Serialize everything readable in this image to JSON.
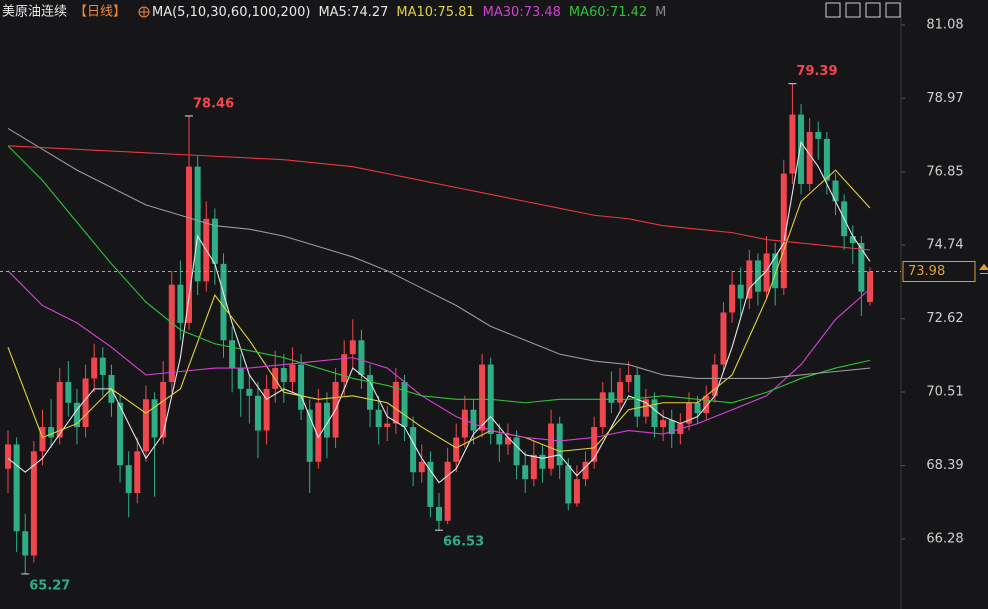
{
  "header": {
    "title": "美原油连续",
    "period": "【日线】",
    "ma_params": "MA(5,10,30,60,100,200)",
    "tail": "M"
  },
  "chart_data": {
    "type": "candlestick",
    "open": [
      68.3,
      69.0,
      66.5,
      65.8,
      68.8,
      69.5,
      69.2,
      70.8,
      70.2,
      69.5,
      70.9,
      71.5,
      71.0,
      70.2,
      68.4,
      67.6,
      68.8,
      70.3,
      69.2,
      70.8,
      73.6,
      72.5,
      77.0,
      73.7,
      75.5,
      74.2,
      72.0,
      71.2,
      70.6,
      70.4,
      69.4,
      70.6,
      71.2,
      70.8,
      71.3,
      70.0,
      68.5,
      70.2,
      69.2,
      70.8,
      71.6,
      72.0,
      71.0,
      70.0,
      69.5,
      69.6,
      70.8,
      69.5,
      68.2,
      68.5,
      67.2,
      66.8,
      68.5,
      69.2,
      70.0,
      69.4,
      71.3,
      69.3,
      69.0,
      69.2,
      68.4,
      68.0,
      68.7,
      68.3,
      69.6,
      68.4,
      67.3,
      68.0,
      68.5,
      69.5,
      70.5,
      70.2,
      70.8,
      71.0,
      69.8,
      70.3,
      69.5,
      69.7,
      69.3,
      69.6,
      70.2,
      69.9,
      70.4,
      71.3,
      72.8,
      73.6,
      73.2,
      74.3,
      73.4,
      74.5,
      73.5,
      76.8,
      78.5,
      76.5,
      78.0,
      77.8,
      76.6,
      76.0,
      75.0,
      74.8,
      73.1
    ],
    "high": [
      69.4,
      69.2,
      67.0,
      69.1,
      70.0,
      70.3,
      71.2,
      71.4,
      70.6,
      71.3,
      71.9,
      71.8,
      71.3,
      70.4,
      68.8,
      69.2,
      70.7,
      70.5,
      71.4,
      74.0,
      74.3,
      78.46,
      77.3,
      76.0,
      75.8,
      74.5,
      72.4,
      71.6,
      71.0,
      70.8,
      71.0,
      71.7,
      71.6,
      71.8,
      71.6,
      70.3,
      70.6,
      70.5,
      71.2,
      72.0,
      72.6,
      72.3,
      71.3,
      70.4,
      70.1,
      71.2,
      71.0,
      69.8,
      69.0,
      68.8,
      67.6,
      68.9,
      69.6,
      70.4,
      70.3,
      71.6,
      71.5,
      69.6,
      69.6,
      69.4,
      68.8,
      69.1,
      69.0,
      70.0,
      69.8,
      68.6,
      68.4,
      68.8,
      69.8,
      70.8,
      71.1,
      71.2,
      71.4,
      71.2,
      70.6,
      70.5,
      70.0,
      70.0,
      69.9,
      70.5,
      70.4,
      70.7,
      71.6,
      73.1,
      74.0,
      74.1,
      74.6,
      74.5,
      75.0,
      74.8,
      77.2,
      79.39,
      78.8,
      78.4,
      78.3,
      78.0,
      76.8,
      76.2,
      75.3,
      75.0,
      74.1
    ],
    "low": [
      67.6,
      65.9,
      65.27,
      65.6,
      68.4,
      68.9,
      69.0,
      69.8,
      69.0,
      69.2,
      70.5,
      70.4,
      69.8,
      67.9,
      66.9,
      67.3,
      68.5,
      67.5,
      69.0,
      70.5,
      72.0,
      72.3,
      73.3,
      73.4,
      73.6,
      71.5,
      70.5,
      69.8,
      69.6,
      68.6,
      69.0,
      70.2,
      70.2,
      70.5,
      69.7,
      67.6,
      68.3,
      68.6,
      68.9,
      70.4,
      71.2,
      70.6,
      69.5,
      69.0,
      69.1,
      69.3,
      69.1,
      67.8,
      67.9,
      66.9,
      66.53,
      66.7,
      68.2,
      68.9,
      69.0,
      69.2,
      69.0,
      68.5,
      68.7,
      68.0,
      67.6,
      67.8,
      67.9,
      68.1,
      68.0,
      67.1,
      67.2,
      67.8,
      68.3,
      69.3,
      69.9,
      70.0,
      70.5,
      69.5,
      69.6,
      69.2,
      69.1,
      68.9,
      69.0,
      69.4,
      69.6,
      69.7,
      70.2,
      71.1,
      72.5,
      72.7,
      72.9,
      73.0,
      73.2,
      73.0,
      73.3,
      76.5,
      76.2,
      76.3,
      77.2,
      76.2,
      75.6,
      74.6,
      74.2,
      72.7,
      73.0
    ],
    "close": [
      69.0,
      66.5,
      65.8,
      68.8,
      69.5,
      69.2,
      70.8,
      70.2,
      69.5,
      70.9,
      71.5,
      71.0,
      70.2,
      68.4,
      67.6,
      68.8,
      70.3,
      69.2,
      70.8,
      73.6,
      72.5,
      77.0,
      73.7,
      75.5,
      74.2,
      72.0,
      71.2,
      70.6,
      70.4,
      69.4,
      70.6,
      71.2,
      70.8,
      71.3,
      70.0,
      68.5,
      70.2,
      69.2,
      70.8,
      71.6,
      72.0,
      71.0,
      70.0,
      69.5,
      69.6,
      70.8,
      69.5,
      68.2,
      68.5,
      67.2,
      66.8,
      68.5,
      69.2,
      70.0,
      69.4,
      71.3,
      69.3,
      69.0,
      69.2,
      68.4,
      68.0,
      68.7,
      68.3,
      69.6,
      68.4,
      67.3,
      68.0,
      68.5,
      69.5,
      70.5,
      70.2,
      70.8,
      71.0,
      69.8,
      70.3,
      69.5,
      69.7,
      69.3,
      69.6,
      70.2,
      69.9,
      70.4,
      71.3,
      72.8,
      73.6,
      73.2,
      74.3,
      73.4,
      74.5,
      73.5,
      76.8,
      78.5,
      76.5,
      78.0,
      77.8,
      76.6,
      76.0,
      75.0,
      74.8,
      73.4,
      73.98
    ],
    "up_color": "#f0474e",
    "down_color": "#2fae86",
    "series": [
      {
        "label": "MA5:74.27",
        "color": "#e6e6e6",
        "x": [
          0,
          2,
          4,
          6,
          8,
          10,
          12,
          14,
          16,
          18,
          20,
          22,
          24,
          26,
          28,
          30,
          32,
          34,
          36,
          38,
          40,
          42,
          44,
          46,
          48,
          50,
          52,
          54,
          56,
          58,
          60,
          62,
          64,
          66,
          68,
          70,
          72,
          74,
          76,
          78,
          80,
          82,
          84,
          86,
          88,
          90,
          92,
          94,
          96,
          98,
          100
        ],
        "values": [
          68.6,
          68.2,
          68.6,
          69.3,
          70.0,
          70.6,
          70.6,
          69.6,
          68.6,
          69.3,
          71.5,
          75.0,
          74.2,
          72.5,
          71.0,
          70.3,
          70.6,
          70.4,
          69.2,
          70.0,
          71.2,
          70.8,
          69.8,
          69.5,
          68.6,
          67.9,
          68.3,
          69.3,
          69.8,
          69.2,
          68.7,
          68.6,
          68.7,
          68.1,
          68.6,
          69.5,
          70.4,
          70.2,
          69.8,
          69.6,
          69.8,
          70.4,
          71.8,
          73.5,
          74.0,
          74.8,
          77.7,
          77.0,
          76.0,
          75.0,
          74.27
        ]
      },
      {
        "label": "MA10:75.81",
        "color": "#e0d23a",
        "x": [
          0,
          4,
          8,
          12,
          16,
          20,
          24,
          28,
          32,
          36,
          40,
          44,
          48,
          52,
          56,
          60,
          64,
          68,
          72,
          76,
          80,
          84,
          88,
          92,
          96,
          100
        ],
        "values": [
          71.8,
          69.2,
          69.6,
          70.6,
          69.9,
          70.6,
          73.3,
          72.0,
          70.5,
          70.3,
          70.4,
          70.2,
          69.5,
          68.9,
          69.4,
          69.2,
          68.8,
          68.9,
          70.0,
          70.2,
          70.2,
          71.0,
          73.2,
          76.0,
          76.9,
          75.81
        ]
      },
      {
        "label": "MA30:73.48",
        "color": "#d63fd6",
        "x": [
          0,
          4,
          8,
          12,
          16,
          20,
          24,
          28,
          32,
          36,
          40,
          44,
          48,
          52,
          56,
          60,
          64,
          68,
          72,
          76,
          80,
          84,
          88,
          92,
          96,
          100
        ],
        "values": [
          74.0,
          73.0,
          72.5,
          71.8,
          71.0,
          71.1,
          71.2,
          71.2,
          71.3,
          71.4,
          71.5,
          71.2,
          70.4,
          69.8,
          69.4,
          69.2,
          69.1,
          69.2,
          69.4,
          69.3,
          69.6,
          70.0,
          70.4,
          71.3,
          72.6,
          73.48
        ]
      },
      {
        "label": "MA60:71.42",
        "color": "#2fc13a",
        "x": [
          0,
          4,
          8,
          12,
          16,
          20,
          24,
          28,
          32,
          36,
          40,
          44,
          48,
          52,
          56,
          60,
          64,
          68,
          72,
          76,
          80,
          84,
          88,
          92,
          96,
          100
        ],
        "values": [
          77.6,
          76.6,
          75.4,
          74.2,
          73.1,
          72.3,
          71.9,
          71.7,
          71.5,
          71.2,
          70.9,
          70.7,
          70.4,
          70.3,
          70.3,
          70.2,
          70.3,
          70.3,
          70.3,
          70.4,
          70.3,
          70.2,
          70.5,
          70.9,
          71.2,
          71.42
        ]
      },
      {
        "color": "#9a9a9a",
        "x": [
          0,
          4,
          8,
          12,
          16,
          20,
          24,
          28,
          32,
          36,
          40,
          44,
          48,
          52,
          56,
          60,
          64,
          68,
          72,
          76,
          80,
          84,
          88,
          92,
          96,
          100
        ],
        "values": [
          78.1,
          77.5,
          76.9,
          76.4,
          75.9,
          75.6,
          75.3,
          75.2,
          75.0,
          74.7,
          74.4,
          74.0,
          73.5,
          73.0,
          72.4,
          72.0,
          71.6,
          71.4,
          71.3,
          71.0,
          70.9,
          70.9,
          70.9,
          71.0,
          71.1,
          71.2
        ]
      },
      {
        "color": "#e8383d",
        "x": [
          0,
          4,
          8,
          12,
          16,
          20,
          24,
          28,
          32,
          36,
          40,
          44,
          48,
          52,
          56,
          60,
          64,
          68,
          72,
          76,
          80,
          84,
          88,
          92,
          96,
          100
        ],
        "values": [
          77.6,
          77.55,
          77.5,
          77.45,
          77.4,
          77.35,
          77.3,
          77.25,
          77.2,
          77.1,
          77.0,
          76.8,
          76.6,
          76.4,
          76.2,
          76.0,
          75.8,
          75.6,
          75.5,
          75.3,
          75.2,
          75.1,
          74.9,
          74.8,
          74.7,
          74.6
        ]
      }
    ],
    "ylim": [
      64.26,
      81.8
    ],
    "yticks": [
      81.08,
      78.97,
      76.85,
      74.74,
      72.62,
      70.51,
      68.39,
      66.28
    ]
  }
}
